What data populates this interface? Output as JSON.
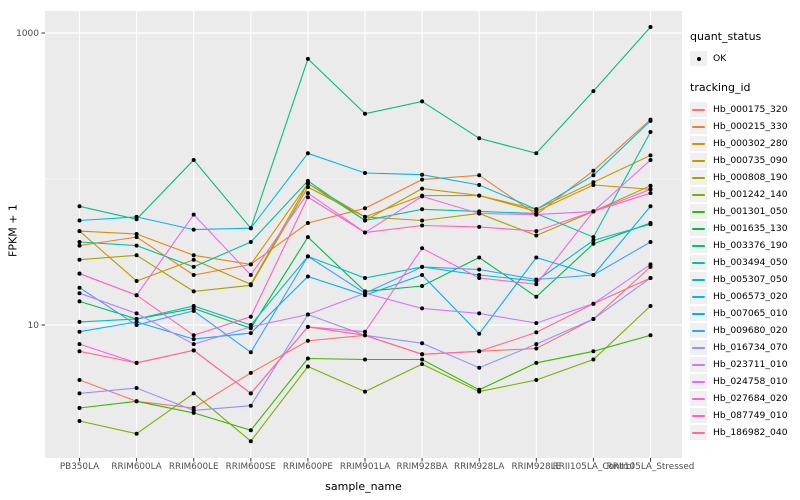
{
  "chart_data": {
    "type": "line",
    "title": "",
    "xlabel": "sample_name",
    "ylabel": "FPKM + 1",
    "y_scale": "log10",
    "y_ticks": [
      10,
      1000
    ],
    "y_minor_gridlines": [
      100
    ],
    "grid": "on",
    "legend_position": "right",
    "categories": [
      "PB350LA",
      "RRIM600LA",
      "RRIM600LE",
      "RRIM600SE",
      "RRIM600PE",
      "RRIM901LA",
      "RRIM928BA",
      "RRIM928LA",
      "RRIM928LE",
      "RRII105LA_Control",
      "RRII105LA_Stressed"
    ],
    "series": [
      {
        "name": "Hb_000175_320",
        "color": "#F8766D",
        "values": [
          4.2,
          3.0,
          2.7,
          4.7,
          7.8,
          8.5,
          6.3,
          6.6,
          6.9,
          11,
          25
        ]
      },
      {
        "name": "Hb_000215_330",
        "color": "#EA8331",
        "values": [
          35,
          40,
          22,
          26,
          50,
          63,
          99,
          106,
          57,
          114,
          255
        ]
      },
      {
        "name": "Hb_000302_280",
        "color": "#D89000",
        "values": [
          44,
          42,
          30,
          26,
          93,
          55,
          77,
          77,
          60,
          91,
          85
        ]
      },
      {
        "name": "Hb_000735_090",
        "color": "#C09B00",
        "values": [
          44,
          20,
          28,
          19,
          93,
          52,
          86,
          77,
          62,
          95,
          145
        ]
      },
      {
        "name": "Hb_000808_190",
        "color": "#A3A500",
        "values": [
          28,
          30,
          17,
          18.7,
          88,
          55,
          52,
          58,
          41,
          60,
          90
        ]
      },
      {
        "name": "Hb_001242_140",
        "color": "#7CAE00",
        "values": [
          2.2,
          1.8,
          3.4,
          1.6,
          5.2,
          3.5,
          5.4,
          3.5,
          4.2,
          5.8,
          13.5
        ]
      },
      {
        "name": "Hb_001301_050",
        "color": "#39B600",
        "values": [
          2.7,
          3.0,
          2.5,
          1.9,
          5.9,
          5.8,
          5.8,
          3.6,
          5.5,
          6.6,
          8.5
        ]
      },
      {
        "name": "Hb_001635_130",
        "color": "#00BB4E",
        "values": [
          14.5,
          11,
          13,
          9.5,
          40,
          17,
          18.5,
          29,
          15.6,
          36,
          50
        ]
      },
      {
        "name": "Hb_003376_190",
        "color": "#00BF7D",
        "values": [
          65,
          53,
          135,
          46,
          665,
          280,
          340,
          190,
          150,
          400,
          1100
        ]
      },
      {
        "name": "Hb_003494_050",
        "color": "#00C1A3",
        "values": [
          37,
          35,
          25,
          37,
          97,
          52,
          62,
          60,
          58,
          40,
          210
        ]
      },
      {
        "name": "Hb_005307_050",
        "color": "#00BFC4",
        "values": [
          10.5,
          11,
          13.5,
          10,
          29.5,
          21,
          25,
          22,
          20,
          38,
          49
        ]
      },
      {
        "name": "Hb_006573_020",
        "color": "#00BAE0",
        "values": [
          52,
          55,
          45,
          46,
          150,
          110,
          107,
          91,
          62,
          106,
          250
        ]
      },
      {
        "name": "Hb_007065_010",
        "color": "#00B0F6",
        "values": [
          9,
          10.5,
          8,
          8.8,
          21.5,
          16,
          22,
          8.7,
          29,
          22,
          65
        ]
      },
      {
        "name": "Hb_009680_020",
        "color": "#35A2FF",
        "values": [
          18,
          10,
          12.5,
          6.5,
          29.5,
          16.5,
          25,
          24,
          20.5,
          22,
          37
        ]
      },
      {
        "name": "Hb_016734_070",
        "color": "#9590FF",
        "values": [
          3.4,
          3.7,
          2.6,
          2.8,
          11.8,
          8.5,
          7.5,
          5.1,
          7.4,
          11,
          21
        ]
      },
      {
        "name": "Hb_023711_010",
        "color": "#C77CFF",
        "values": [
          16.5,
          12,
          7.4,
          9.7,
          11.8,
          16.5,
          13,
          12,
          10.3,
          14,
          26
        ]
      },
      {
        "name": "Hb_024758_010",
        "color": "#E76BF3",
        "values": [
          22.5,
          16,
          57,
          22,
          80,
          43,
          76,
          58,
          57,
          60,
          135
        ]
      },
      {
        "name": "Hb_027684_020",
        "color": "#FA62DB",
        "values": [
          7.4,
          5.5,
          6.7,
          3.4,
          9.7,
          9,
          33.5,
          21,
          19,
          60,
          85
        ]
      },
      {
        "name": "Hb_087749_010",
        "color": "#FF62BC",
        "values": [
          22.5,
          16,
          8.5,
          11.4,
          75,
          43,
          48,
          47,
          44,
          60,
          80
        ]
      },
      {
        "name": "Hb_186982_040",
        "color": "#FF6A98",
        "values": [
          6.6,
          5.5,
          6.7,
          3.4,
          9.7,
          8.5,
          6.3,
          6.6,
          8.9,
          14,
          21
        ]
      }
    ],
    "legend": {
      "quant_status_title": "quant_status",
      "quant_status_items": [
        {
          "label": "OK",
          "marker": "point",
          "color": "#000000"
        }
      ],
      "tracking_id_title": "tracking_id"
    },
    "colors": {
      "panel_bg": "#EBEBEB",
      "gridline": "#FFFFFF",
      "tick_mark": "#333333",
      "tick_label": "#4D4D4D",
      "point": "#000000",
      "legend_key_bg": "#F0F0F0"
    }
  }
}
